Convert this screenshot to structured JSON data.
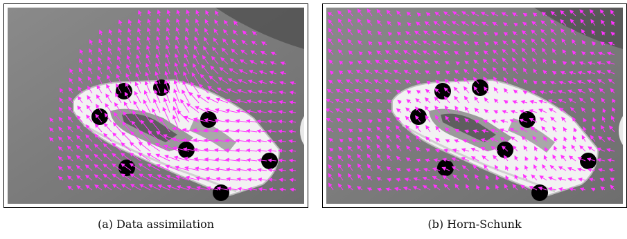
{
  "panels": [
    {
      "label": "(a)",
      "caption": "Data assimilation",
      "overlay_color": "#ff33ff",
      "method": "data-assimilation"
    },
    {
      "label": "(b)",
      "caption": "Horn-Schunk",
      "overlay_color": "#ff33ff",
      "method": "horn-schunck"
    }
  ],
  "colors": {
    "background": "#7a7a7a",
    "car": "#f2f2f2",
    "markers": "#000000",
    "vectors": "#ff33ff"
  }
}
